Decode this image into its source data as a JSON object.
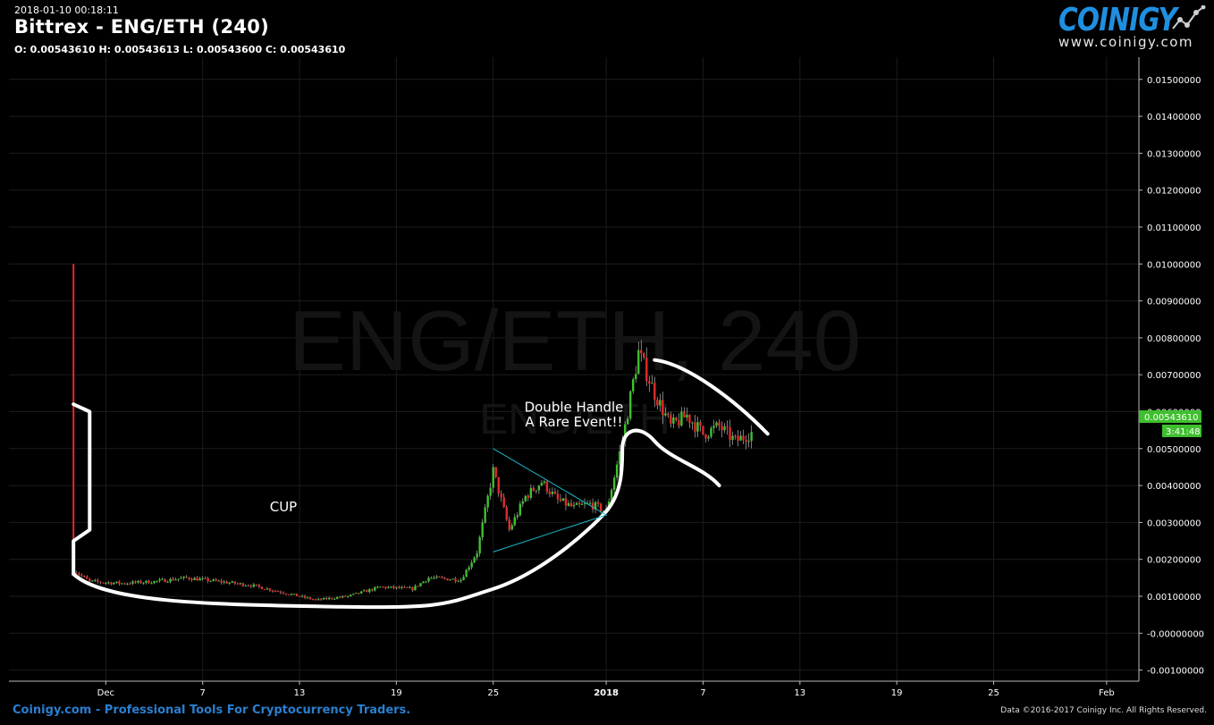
{
  "header": {
    "timestamp": "2018-01-10 00:18:11",
    "title": "Bittrex - ENG/ETH (240)",
    "ohlc": "O: 0.00543610 H: 0.00543613 L: 0.00543600 C: 0.00543610"
  },
  "logo": {
    "word": "COINIGY",
    "url": "www.coinigy.com",
    "icon": "chart-trend-icon"
  },
  "watermark": {
    "main": "ENG/ETH, 240",
    "sub": "ENG/ETH"
  },
  "footer": {
    "left": "Coinigy.com - Professional Tools For Cryptocurrency Traders.",
    "right": "Data ©2016-2017 Coinigy Inc. All Rights Reserved."
  },
  "colors": {
    "up": "#3fbf2f",
    "down": "#e02b2b",
    "accent": "#1f8fe0",
    "annotation": "#ffffff",
    "triangle": "#19b7c9"
  },
  "price_badge": "0.00543610",
  "countdown_badge": "3:41:48",
  "chart_data": {
    "type": "candlestick",
    "ylim": [
      -0.0013,
      0.0156
    ],
    "yticks": [
      "0.01500000",
      "0.01400000",
      "0.01300000",
      "0.01200000",
      "0.01100000",
      "0.01000000",
      "0.00900000",
      "0.00800000",
      "0.00700000",
      "0.00600000",
      "0.00500000",
      "0.00400000",
      "0.00300000",
      "0.00200000",
      "0.00100000",
      "-0.00000000",
      "-0.00100000"
    ],
    "ytick_values": [
      0.015,
      0.014,
      0.013,
      0.012,
      0.011,
      0.01,
      0.009,
      0.008,
      0.007,
      0.006,
      0.005,
      0.004,
      0.003,
      0.002,
      0.001,
      0.0,
      -0.001
    ],
    "xlim": [
      "2017-11-25",
      "2018-02-03"
    ],
    "xticks": [
      "Dec",
      "7",
      "13",
      "19",
      "25",
      "2018",
      "7",
      "13",
      "19",
      "25",
      "Feb"
    ],
    "xtick_dates": [
      "2017-12-01",
      "2017-12-07",
      "2017-12-13",
      "2017-12-19",
      "2017-12-25",
      "2018-01-01",
      "2018-01-07",
      "2018-01-13",
      "2018-01-19",
      "2018-01-25",
      "2018-02-01"
    ],
    "price_path": [
      [
        "2017-11-29",
        0.0017
      ],
      [
        "2017-11-30",
        0.0014
      ],
      [
        "2017-12-02",
        0.00135
      ],
      [
        "2017-12-04",
        0.0014
      ],
      [
        "2017-12-06",
        0.0015
      ],
      [
        "2017-12-08",
        0.0014
      ],
      [
        "2017-12-10",
        0.0013
      ],
      [
        "2017-12-12",
        0.0011
      ],
      [
        "2017-12-14",
        0.0009
      ],
      [
        "2017-12-16",
        0.001
      ],
      [
        "2017-12-18",
        0.00125
      ],
      [
        "2017-12-20",
        0.0012
      ],
      [
        "2017-12-21",
        0.0015
      ],
      [
        "2017-12-23",
        0.00145
      ],
      [
        "2017-12-24",
        0.0022
      ],
      [
        "2017-12-25",
        0.0044
      ],
      [
        "2017-12-26",
        0.0028
      ],
      [
        "2017-12-27",
        0.0037
      ],
      [
        "2017-12-28",
        0.0041
      ],
      [
        "2017-12-29",
        0.0036
      ],
      [
        "2017-12-30",
        0.0034
      ],
      [
        "2017-12-31",
        0.0035
      ],
      [
        "2018-01-01",
        0.0033
      ],
      [
        "2018-01-02",
        0.0052
      ],
      [
        "2018-01-03",
        0.0076
      ],
      [
        "2018-01-04",
        0.0065
      ],
      [
        "2018-01-05",
        0.0056
      ],
      [
        "2018-01-06",
        0.0059
      ],
      [
        "2018-01-07",
        0.0054
      ],
      [
        "2018-01-08",
        0.0056
      ],
      [
        "2018-01-09",
        0.0052
      ],
      [
        "2018-01-10",
        0.00543
      ]
    ],
    "annotations": [
      {
        "text": "CUP",
        "x": "2017-12-12",
        "y": 0.0033
      },
      {
        "text": "Double Handle",
        "x": "2017-12-30",
        "y": 0.006
      },
      {
        "text": "A Rare Event!!",
        "x": "2017-12-30",
        "y": 0.0056
      }
    ],
    "vertical_line": {
      "x": "2017-11-29",
      "from": 0.0016,
      "to": 0.01,
      "color": "#e02b2b"
    },
    "grid": true
  }
}
